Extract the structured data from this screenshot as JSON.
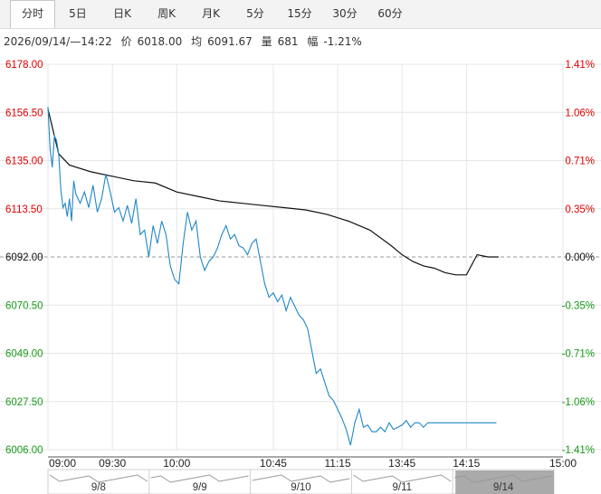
{
  "tabs": [
    {
      "label": "分时",
      "active": true
    },
    {
      "label": "5日"
    },
    {
      "label": "日K"
    },
    {
      "label": "周K"
    },
    {
      "label": "月K"
    },
    {
      "label": "5分"
    },
    {
      "label": "15分"
    },
    {
      "label": "30分"
    },
    {
      "label": "60分"
    }
  ],
  "info": {
    "datetime": "2026/09/14/—14:22",
    "price_label": "价",
    "price": "6018.00",
    "avg_label": "均",
    "avg": "6091.67",
    "volume_label": "量",
    "volume": "681",
    "change_label": "幅",
    "change": "-1.21%"
  },
  "colors": {
    "up": "#e00000",
    "down": "#1a9a1a",
    "neutral": "#111111",
    "price_line": "#1f87c8",
    "avg_line": "#111111",
    "grid": "#e6e6e6",
    "baseline": "#999999"
  },
  "chart_data": {
    "type": "line",
    "base_price": 6092.0,
    "ylim": [
      6006.0,
      6178.0
    ],
    "y_ticks": [
      "6178.00",
      "6156.50",
      "6135.00",
      "6113.50",
      "6092.00",
      "6070.50",
      "6049.00",
      "6027.50",
      "6006.00"
    ],
    "pct_ticks": [
      "1.41%",
      "1.06%",
      "0.71%",
      "0.35%",
      "0.00%",
      "-0.35%",
      "-0.71%",
      "-1.06%",
      "-1.41%"
    ],
    "x_ticks": [
      "09:00",
      "09:30",
      "10:00",
      "10:45",
      "11:15",
      "13:45",
      "14:15",
      "15:00"
    ],
    "x_minutes": [
      0,
      30,
      60,
      105,
      135,
      165,
      195,
      240
    ],
    "grid": true,
    "series": [
      {
        "role": "price",
        "x": [
          0,
          1,
          2,
          3,
          4,
          5,
          6,
          7,
          8,
          9,
          10,
          11,
          12,
          13,
          15,
          17,
          19,
          21,
          23,
          25,
          27,
          29,
          31,
          33,
          35,
          37,
          39,
          41,
          43,
          45,
          47,
          49,
          51,
          53,
          55,
          57,
          59,
          61,
          63,
          65,
          67,
          69,
          71,
          73,
          75,
          77,
          79,
          81,
          83,
          85,
          87,
          89,
          91,
          93,
          95,
          97,
          99,
          101,
          103,
          105,
          107,
          109,
          111,
          113,
          115,
          117,
          119,
          121,
          123,
          125,
          127,
          129,
          131,
          133,
          135,
          137,
          139,
          141,
          143,
          145,
          147,
          149,
          151,
          153,
          155,
          157,
          159,
          161,
          163,
          165,
          167,
          169,
          171,
          173,
          175,
          177,
          179,
          181,
          183,
          185,
          187,
          189,
          191,
          193,
          195,
          197,
          199,
          201,
          203,
          205,
          207,
          209
        ],
        "y": [
          6159,
          6140,
          6132,
          6146,
          6144,
          6138,
          6122,
          6114,
          6116,
          6110,
          6118,
          6108,
          6126,
          6120,
          6116,
          6121,
          6114,
          6124,
          6112,
          6118,
          6129,
          6121,
          6112,
          6114,
          6108,
          6115,
          6107,
          6118,
          6102,
          6104,
          6092,
          6106,
          6098,
          6108,
          6102,
          6088,
          6082,
          6080,
          6098,
          6112,
          6104,
          6108,
          6092,
          6086,
          6090,
          6092,
          6096,
          6102,
          6106,
          6100,
          6102,
          6097,
          6096,
          6093,
          6098,
          6100,
          6090,
          6080,
          6074,
          6076,
          6072,
          6075,
          6068,
          6074,
          6070,
          6066,
          6064,
          6060,
          6050,
          6040,
          6042,
          6036,
          6030,
          6028,
          6024,
          6020,
          6015,
          6008,
          6018,
          6024,
          6016,
          6017,
          6014,
          6014,
          6016,
          6014,
          6018,
          6015,
          6016,
          6017,
          6019,
          6016,
          6018,
          6018,
          6016,
          6018,
          6018,
          6018,
          6018,
          6018,
          6018,
          6018,
          6018,
          6018,
          6018,
          6018,
          6018,
          6018,
          6018,
          6018,
          6018,
          6018
        ]
      },
      {
        "role": "average",
        "x": [
          0,
          5,
          10,
          20,
          30,
          40,
          50,
          60,
          70,
          80,
          90,
          100,
          110,
          120,
          130,
          140,
          150,
          160,
          165,
          170,
          175,
          180,
          185,
          190,
          195,
          200,
          205,
          210
        ],
        "y": [
          6158,
          6138,
          6133,
          6130,
          6128,
          6126,
          6125,
          6121,
          6119,
          6117,
          6116,
          6115,
          6114,
          6113,
          6111,
          6108,
          6104,
          6097,
          6093,
          6090,
          6088,
          6087,
          6085,
          6084,
          6084,
          6093,
          6092,
          6092
        ]
      }
    ]
  },
  "nav": {
    "dates": [
      "9/8",
      "9/9",
      "9/10",
      "9/11",
      "9/14"
    ],
    "selected": "9/14"
  }
}
